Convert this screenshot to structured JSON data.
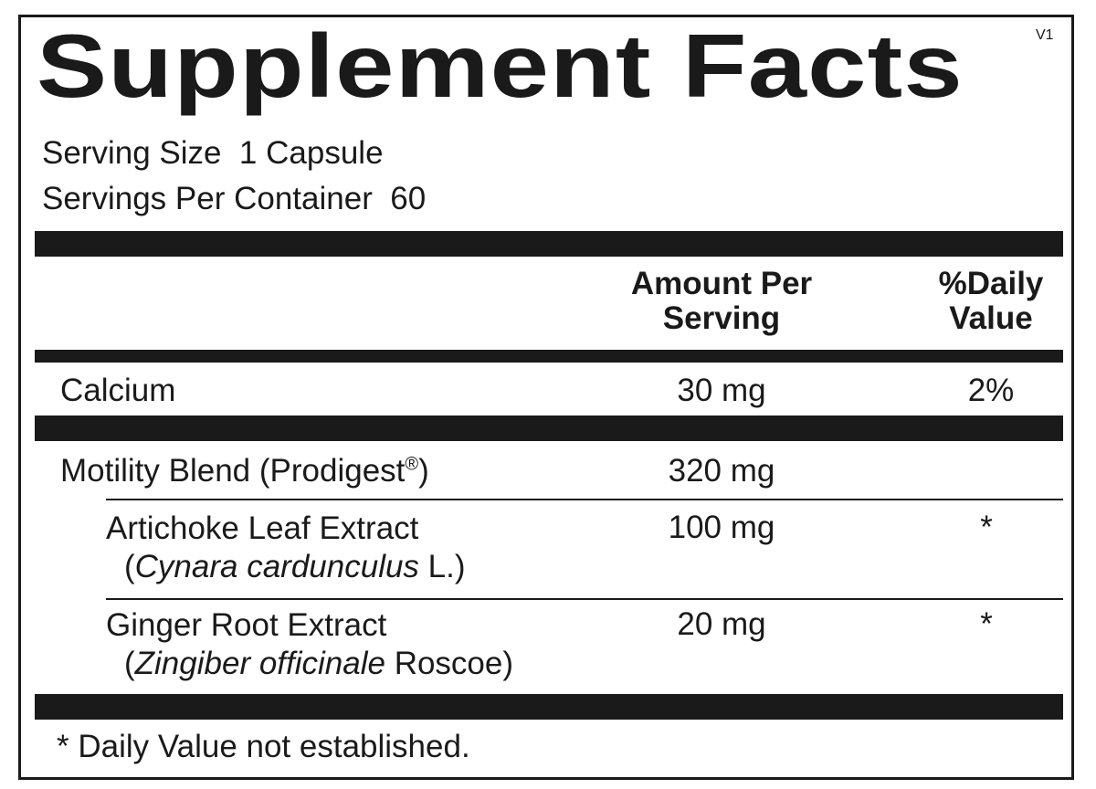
{
  "title": "Supplement Facts",
  "version": "V1",
  "serving_size": "Serving Size  1 Capsule",
  "servings_per_container": "Servings Per Container  60",
  "headers": {
    "amount_line1": "Amount Per",
    "amount_line2": "Serving",
    "dv_line1": "%Daily",
    "dv_line2": "Value"
  },
  "rows": [
    {
      "name": "Calcium",
      "amount": "30 mg",
      "dv": "2%"
    },
    {
      "name": "Motility Blend (Prodigest",
      "reg": "®",
      "name_end": ")",
      "amount": "320 mg",
      "dv": ""
    },
    {
      "name": "Artichoke Leaf Extract",
      "latin_open": "(",
      "latin": "Cynara cardunculus",
      "latin_rest": " L.)",
      "amount": "100 mg",
      "dv": "*"
    },
    {
      "name": "Ginger Root Extract",
      "latin_open": "(",
      "latin": "Zingiber officinale",
      "latin_rest": " Roscoe)",
      "amount": "20 mg",
      "dv": "*"
    }
  ],
  "footnote": "* Daily Value not established."
}
